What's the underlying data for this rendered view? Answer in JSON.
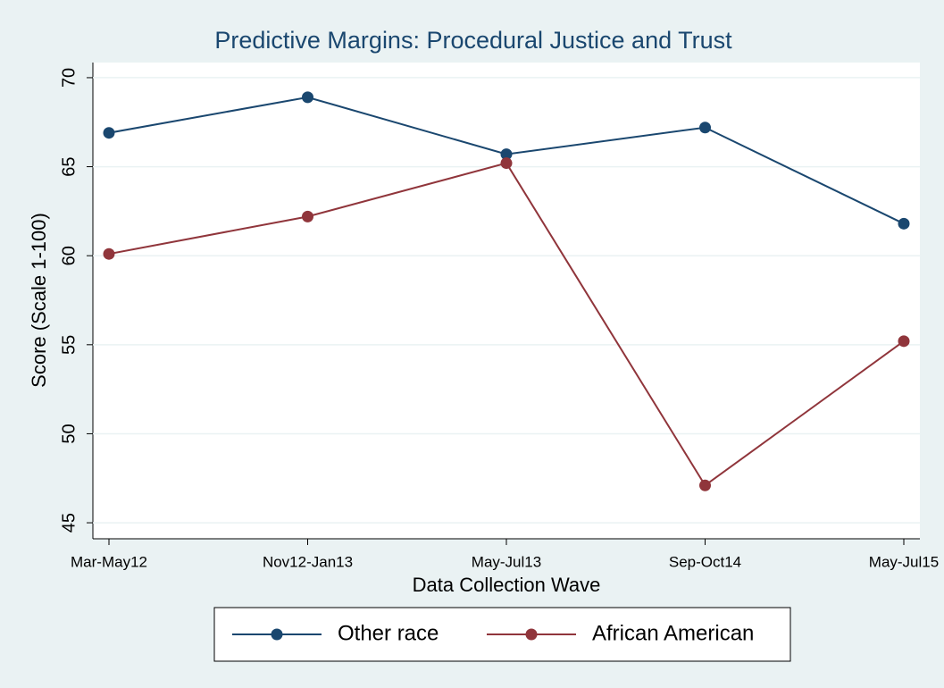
{
  "chart_data": {
    "type": "line",
    "title": "Predictive Margins: Procedural Justice and Trust",
    "xlabel": "Data Collection Wave",
    "ylabel": "Score (Scale 1-100)",
    "categories": [
      "Mar-May12",
      "Nov12-Jan13",
      "May-Jul13",
      "Sep-Oct14",
      "May-Jul15"
    ],
    "series": [
      {
        "name": "Other race",
        "color": "#1a476f",
        "values": [
          66.9,
          68.9,
          65.7,
          67.2,
          61.8
        ]
      },
      {
        "name": "African American",
        "color": "#90353b",
        "values": [
          60.1,
          62.2,
          65.2,
          47.1,
          55.2
        ]
      }
    ],
    "ylim": [
      44.1,
      70.85
    ],
    "yticks": [
      45,
      50,
      55,
      60,
      65,
      70
    ],
    "grid": true,
    "legend": "bottom"
  }
}
